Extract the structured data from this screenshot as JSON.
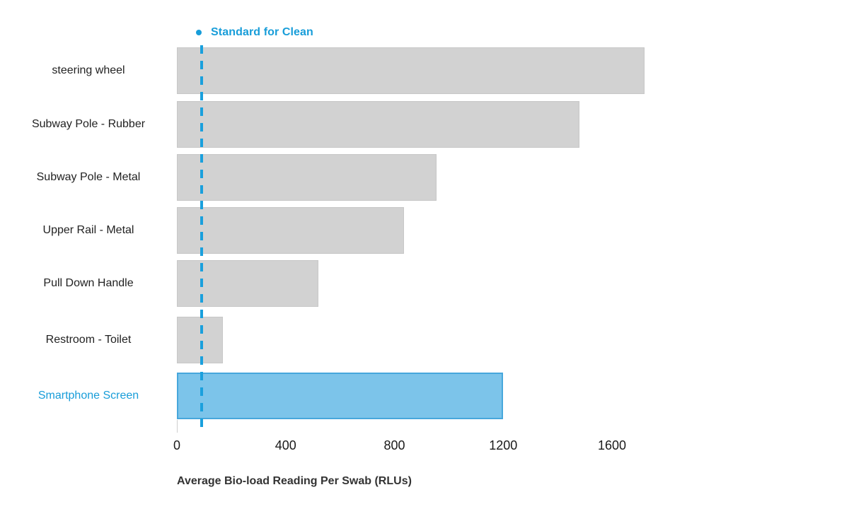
{
  "chart_data": {
    "type": "bar",
    "orientation": "horizontal",
    "title": "",
    "xlabel": "Average Bio-load Reading Per Swab (RLUs)",
    "ylabel": "",
    "categories": [
      "steering wheel",
      "Subway Pole - Rubber",
      "Subway Pole - Metal",
      "Upper Rail - Metal",
      "Pull Down Handle",
      "Restroom - Toilet",
      "Smartphone Screen"
    ],
    "values": [
      1720,
      1480,
      955,
      835,
      520,
      170,
      1200
    ],
    "highlighted_category": "Smartphone Screen",
    "reference_line": {
      "label": "Standard for Clean",
      "value": 90
    },
    "x_ticks": [
      0,
      400,
      800,
      1200,
      1600
    ],
    "xlim": [
      0,
      1780
    ],
    "grid": false,
    "legend_position": "top"
  },
  "legend": {
    "label": "Standard for Clean"
  },
  "colors": {
    "bar_default_fill": "#d2d2d2",
    "bar_default_border": "#c7c7c7",
    "bar_highlight_fill": "#7cc4ea",
    "bar_highlight_border": "#47a7dc",
    "accent_blue": "#189dd9",
    "reference_line_blue": "#1aa0dd",
    "text_dark": "#222222",
    "tick_text": "#1a1a1a"
  }
}
